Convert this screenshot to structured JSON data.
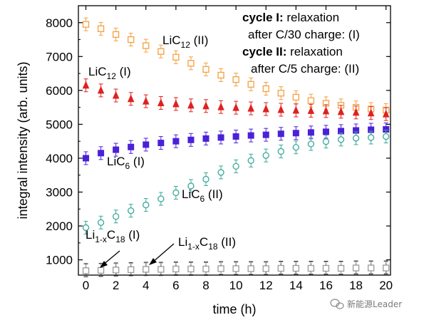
{
  "chart_data": {
    "type": "scatter",
    "xlabel": "time (h)",
    "ylabel": "integral intensity (arb. units)",
    "xlim": [
      -0.5,
      20.3
    ],
    "ylim": [
      550,
      8500
    ],
    "xticks": [
      0,
      2,
      4,
      6,
      8,
      10,
      12,
      14,
      16,
      18,
      20
    ],
    "yticks": [
      1000,
      2000,
      3000,
      4000,
      5000,
      6000,
      7000,
      8000
    ],
    "legend": {
      "line1_bold": "cycle I:",
      "line1_rest": " relaxation",
      "line2": "after C/30 charge: (I)",
      "line3_bold": "cycle II:",
      "line3_rest": " relaxation",
      "line4": "after C/5 charge: (II)"
    },
    "series": [
      {
        "label_main": "LiC",
        "label_sub": "12",
        "label_suffix": " (II)",
        "color": "#f5a040",
        "marker": "square-open",
        "x": [
          0,
          1,
          2,
          3,
          4,
          5,
          6,
          7,
          8,
          9,
          10,
          11,
          12,
          13,
          14,
          15,
          16,
          17,
          18,
          19,
          20
        ],
        "y": [
          7950,
          7820,
          7650,
          7500,
          7320,
          7150,
          6980,
          6800,
          6620,
          6450,
          6320,
          6180,
          6050,
          5920,
          5800,
          5700,
          5620,
          5560,
          5500,
          5450,
          5420
        ]
      },
      {
        "label_main": "LiC",
        "label_sub": "12",
        "label_suffix": " (I)",
        "color": "#e02020",
        "marker": "triangle",
        "x": [
          0,
          1,
          2,
          3,
          4,
          5,
          6,
          7,
          8,
          9,
          10,
          11,
          12,
          13,
          14,
          15,
          16,
          17,
          18,
          19,
          20
        ],
        "y": [
          6150,
          6000,
          5850,
          5750,
          5680,
          5630,
          5600,
          5560,
          5540,
          5510,
          5490,
          5470,
          5450,
          5430,
          5410,
          5400,
          5390,
          5370,
          5350,
          5330,
          5300
        ]
      },
      {
        "label_main": "LiC",
        "label_sub": "6",
        "label_suffix": " (I)",
        "color": "#4a20d8",
        "marker": "square",
        "x": [
          0,
          1,
          2,
          3,
          4,
          5,
          6,
          7,
          8,
          9,
          10,
          11,
          12,
          13,
          14,
          15,
          16,
          17,
          18,
          19,
          20
        ],
        "y": [
          4000,
          4150,
          4250,
          4330,
          4400,
          4450,
          4500,
          4540,
          4580,
          4610,
          4640,
          4670,
          4690,
          4720,
          4740,
          4760,
          4780,
          4800,
          4820,
          4840,
          4850
        ]
      },
      {
        "label_main": "LiC",
        "label_sub": "6",
        "label_suffix": " (II)",
        "color": "#3aa89a",
        "marker": "circle-open",
        "x": [
          0,
          1,
          2,
          3,
          4,
          5,
          6,
          7,
          8,
          9,
          10,
          11,
          12,
          13,
          14,
          15,
          16,
          17,
          18,
          19,
          20
        ],
        "y": [
          1950,
          2100,
          2280,
          2450,
          2620,
          2800,
          2980,
          3180,
          3380,
          3580,
          3760,
          3930,
          4080,
          4200,
          4320,
          4420,
          4490,
          4550,
          4590,
          4610,
          4640
        ]
      },
      {
        "label_main": "Li",
        "label_sub": "1-x",
        "label_mid": "C",
        "label_sub2": "18",
        "label_suffix": " (I)",
        "color": "#303030",
        "marker": "diamond",
        "x": [
          0,
          1,
          2,
          3,
          4,
          5,
          6,
          7,
          8,
          9,
          10,
          11,
          12,
          13,
          14,
          15,
          16,
          17,
          18,
          19,
          20
        ],
        "y": [
          700,
          710,
          720,
          730,
          740,
          740,
          750,
          750,
          750,
          760,
          760,
          760,
          760,
          770,
          770,
          770,
          770,
          770,
          780,
          780,
          780
        ]
      },
      {
        "label_main": "Li",
        "label_sub": "1-x",
        "label_mid": "C",
        "label_sub2": "18",
        "label_suffix": " (II)",
        "color": "#9a9a9a",
        "marker": "square-open",
        "x": [
          0,
          1,
          2,
          3,
          4,
          5,
          6,
          7,
          8,
          9,
          10,
          11,
          12,
          13,
          14,
          15,
          16,
          17,
          18,
          19,
          20
        ],
        "y": [
          680,
          690,
          700,
          710,
          720,
          720,
          730,
          730,
          730,
          740,
          740,
          740,
          740,
          750,
          750,
          750,
          750,
          750,
          760,
          760,
          760
        ]
      }
    ]
  },
  "watermark": "新能源Leader"
}
